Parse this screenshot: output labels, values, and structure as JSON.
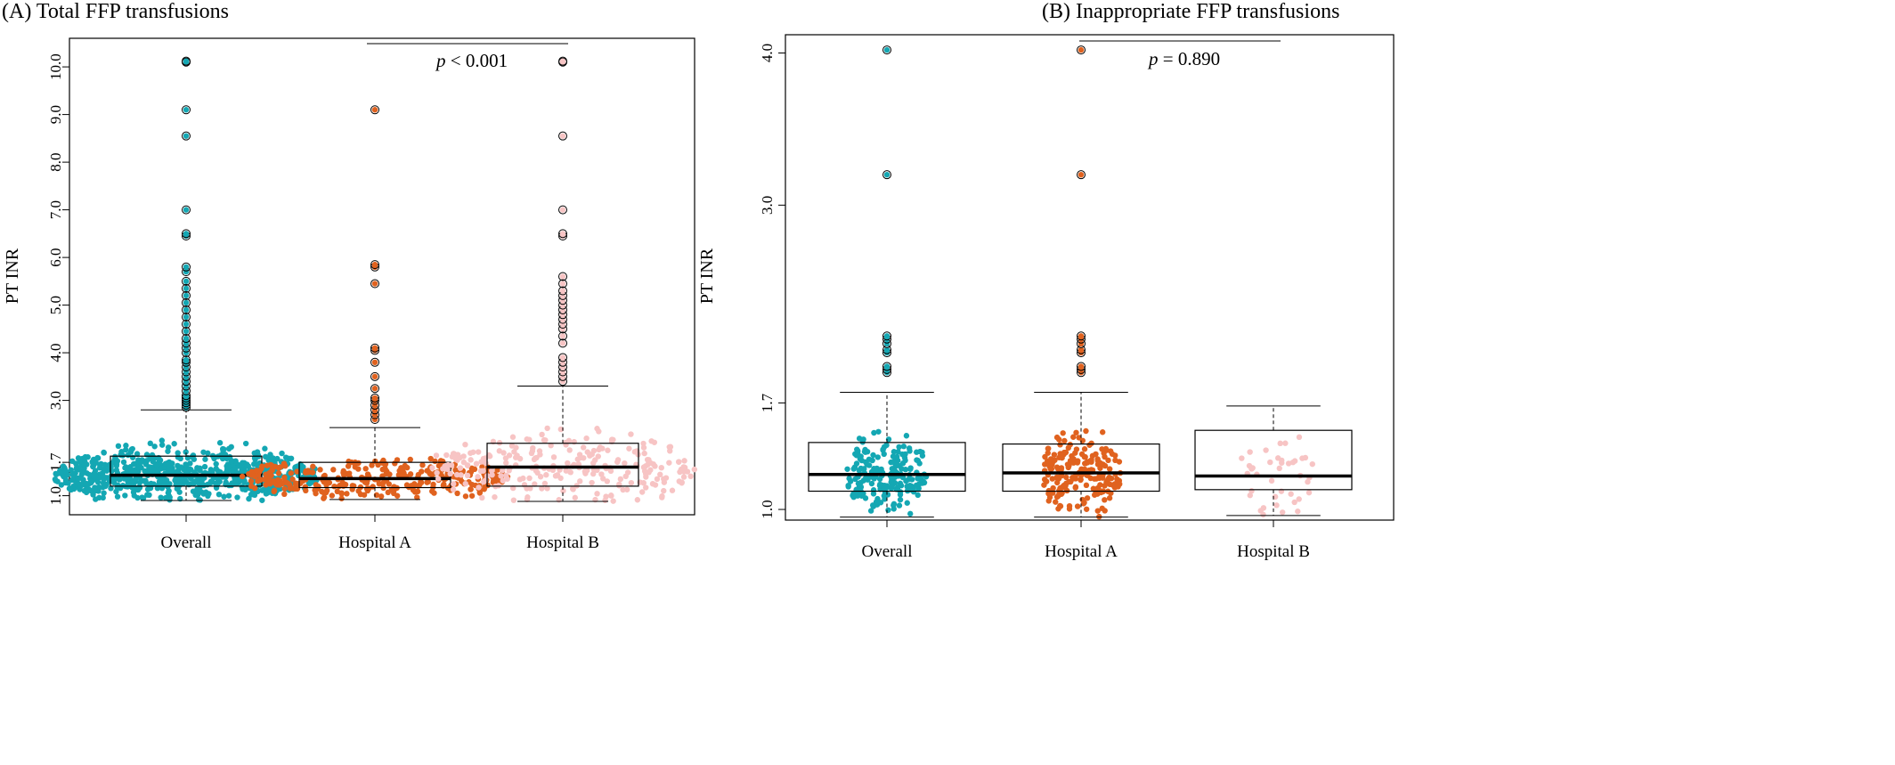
{
  "chart_data": [
    {
      "type": "boxplot",
      "title": "(A) Total FFP transfusions",
      "ylabel": "PT INR",
      "categories": [
        "Overall",
        "Hospital A",
        "Hospital B"
      ],
      "ytick_labels": [
        "1.0",
        "1.7",
        "3.0",
        "4.0",
        "5.0",
        "6.0",
        "7.0",
        "8.0",
        "9.0",
        "10.0"
      ],
      "ylim": [
        0.6,
        10.6
      ],
      "annotation": {
        "italic": "p",
        "text": " < 0.001",
        "between": [
          "Hospital A",
          "Hospital B"
        ]
      },
      "series": [
        {
          "name": "Overall",
          "color": "#14a7b3",
          "whisker_low": 0.9,
          "q1": 1.2,
          "median": 1.43,
          "q3": 1.83,
          "whisker_high": 2.8,
          "outliers": [
            2.85,
            2.9,
            2.95,
            3.0,
            3.05,
            3.1,
            3.2,
            3.3,
            3.4,
            3.5,
            3.6,
            3.7,
            3.8,
            3.85,
            4.0,
            4.1,
            4.2,
            4.3,
            4.45,
            4.6,
            4.75,
            4.9,
            5.05,
            5.2,
            5.35,
            5.5,
            5.7,
            5.8,
            6.45,
            6.5,
            7.0,
            8.55,
            9.1,
            10.1,
            10.12
          ]
        },
        {
          "name": "Hospital A",
          "color": "#e0621f",
          "whisker_low": 0.92,
          "q1": 1.17,
          "median": 1.36,
          "q3": 1.7,
          "whisker_high": 2.43,
          "outliers": [
            2.6,
            2.7,
            2.8,
            2.9,
            3.0,
            3.05,
            3.25,
            3.5,
            3.8,
            4.05,
            4.1,
            5.45,
            5.8,
            5.85,
            9.1
          ]
        },
        {
          "name": "Hospital B",
          "color": "#f7c4c4",
          "whisker_low": 0.88,
          "q1": 1.2,
          "median": 1.6,
          "q3": 2.1,
          "whisker_high": 3.3,
          "outliers": [
            3.4,
            3.5,
            3.6,
            3.7,
            3.8,
            3.9,
            4.2,
            4.35,
            4.5,
            4.6,
            4.7,
            4.8,
            4.9,
            5.0,
            5.1,
            5.2,
            5.3,
            5.45,
            5.6,
            6.45,
            6.5,
            7.0,
            8.55,
            10.1,
            10.12
          ]
        }
      ]
    },
    {
      "type": "boxplot",
      "title": "(B) Inappropriate FFP transfusions",
      "ylabel": "PT INR",
      "categories": [
        "Overall",
        "Hospital A",
        "Hospital B"
      ],
      "ytick_labels": [
        "1.0",
        "1.7",
        "3.0",
        "4.0"
      ],
      "ylim": [
        0.93,
        4.12
      ],
      "annotation": {
        "italic": "p",
        "text": " = 0.890",
        "between": [
          "Hospital A",
          "Hospital B"
        ]
      },
      "series": [
        {
          "name": "Overall",
          "color": "#14a7b3",
          "whisker_low": 0.95,
          "q1": 1.12,
          "median": 1.23,
          "q3": 1.44,
          "whisker_high": 1.77,
          "outliers": [
            1.9,
            1.92,
            1.94,
            2.03,
            2.05,
            2.09,
            2.12,
            2.14,
            3.2,
            4.02
          ]
        },
        {
          "name": "Hospital A",
          "color": "#e0621f",
          "whisker_low": 0.95,
          "q1": 1.12,
          "median": 1.24,
          "q3": 1.43,
          "whisker_high": 1.77,
          "outliers": [
            1.9,
            1.92,
            1.94,
            2.03,
            2.05,
            2.09,
            2.12,
            2.14,
            3.2,
            4.02
          ]
        },
        {
          "name": "Hospital B",
          "color": "#f7c4c4",
          "whisker_low": 0.96,
          "q1": 1.13,
          "median": 1.22,
          "q3": 1.52,
          "whisker_high": 1.68,
          "outliers": []
        }
      ]
    }
  ]
}
